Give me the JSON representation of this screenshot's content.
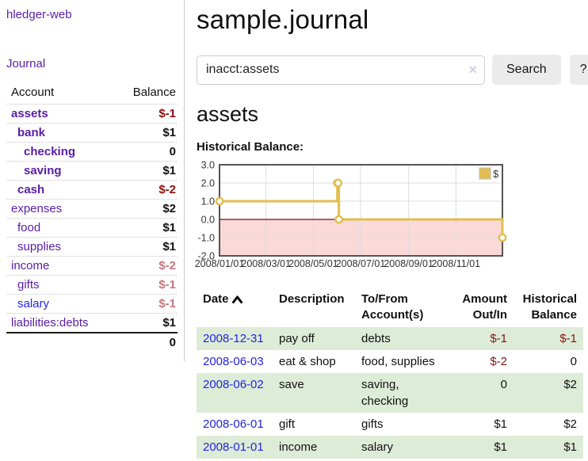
{
  "app": {
    "brand": "hledger-web",
    "nav_journal": "Journal"
  },
  "sidebar": {
    "headers": {
      "account": "Account",
      "balance": "Balance"
    },
    "accounts": [
      {
        "name": "assets",
        "level": 1,
        "in_account": true,
        "balance": "$-1"
      },
      {
        "name": "bank",
        "level": 2,
        "in_account": true,
        "balance": "$1"
      },
      {
        "name": "checking",
        "level": 3,
        "in_account": true,
        "balance": "0"
      },
      {
        "name": "saving",
        "level": 3,
        "in_account": true,
        "balance": "$1"
      },
      {
        "name": "cash",
        "level": 2,
        "in_account": true,
        "balance": "$-2"
      },
      {
        "name": "expenses",
        "level": 1,
        "in_account": false,
        "balance": "$2"
      },
      {
        "name": "food",
        "level": 2,
        "in_account": false,
        "balance": "$1"
      },
      {
        "name": "supplies",
        "level": 2,
        "in_account": false,
        "balance": "$1"
      },
      {
        "name": "income",
        "level": 1,
        "in_account": false,
        "balance": "$-2"
      },
      {
        "name": "gifts",
        "level": 2,
        "in_account": false,
        "balance": "$-1"
      },
      {
        "name": "salary",
        "level": 2,
        "in_account": false,
        "balance": "$-1",
        "link_color": "blue"
      },
      {
        "name": "liabilities:debts",
        "level": 1,
        "in_account": false,
        "balance": "$1"
      }
    ],
    "total": "0"
  },
  "main": {
    "title": "sample.journal",
    "search": {
      "value": "inacct:assets",
      "clear_glyph": "×",
      "search_label": "Search",
      "help_label": "?"
    },
    "account_heading": "assets",
    "chart_label": "Historical Balance:"
  },
  "chart_data": {
    "type": "line",
    "step": true,
    "title": "Historical Balance",
    "xlim": [
      "2008-01-01",
      "2008-12-31"
    ],
    "ylim": [
      -2,
      3
    ],
    "y_ticks": [
      3,
      2,
      1,
      0,
      -1,
      -2
    ],
    "x_ticks": [
      "2008/01/01",
      "2008/03/01",
      "2008/05/01",
      "2008/07/01",
      "2008/09/01",
      "2008/11/01"
    ],
    "grid": true,
    "negative_fill": "#fbd9d9",
    "zero_line_color": "#7d0d0d",
    "border_color": "#545454",
    "grid_color": "#dddddd",
    "legend": {
      "position": "top-right"
    },
    "series": [
      {
        "name": "$",
        "color": "#e2be4f",
        "points": [
          [
            "2008-01-01",
            1.0
          ],
          [
            "2008-06-01",
            2.0
          ],
          [
            "2008-06-02",
            2.0
          ],
          [
            "2008-06-03",
            0.0
          ],
          [
            "2008-12-31",
            -1.0
          ]
        ]
      }
    ]
  },
  "register": {
    "headers": [
      {
        "label": "Date",
        "sorted": "asc"
      },
      {
        "label": "Description"
      },
      {
        "label": "To/From Account(s)"
      },
      {
        "label": "Amount Out/In"
      },
      {
        "label": "Historical Balance"
      }
    ],
    "rows": [
      {
        "date": "2008-12-31",
        "description": "pay off",
        "accounts": "debts",
        "amount": "$-1",
        "balance": "$-1"
      },
      {
        "date": "2008-06-03",
        "description": "eat & shop",
        "accounts": "food, supplies",
        "amount": "$-2",
        "balance": "0"
      },
      {
        "date": "2008-06-02",
        "description": "save",
        "accounts": "saving, checking",
        "amount": "0",
        "balance": "$2"
      },
      {
        "date": "2008-06-01",
        "description": "gift",
        "accounts": "gifts",
        "amount": "$1",
        "balance": "$2"
      },
      {
        "date": "2008-01-01",
        "description": "income",
        "accounts": "salary",
        "amount": "$1",
        "balance": "$1"
      }
    ]
  }
}
